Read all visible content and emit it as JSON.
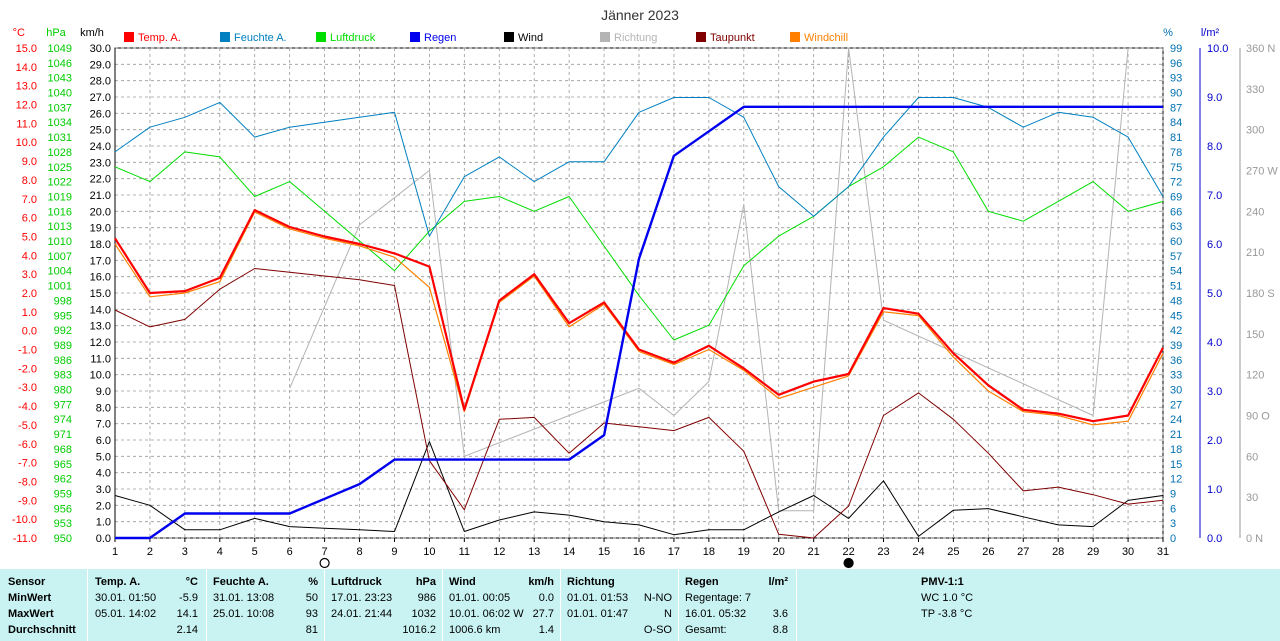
{
  "chart_data": {
    "type": "line",
    "title": "Jänner 2023",
    "x": [
      1,
      2,
      3,
      4,
      5,
      6,
      7,
      8,
      9,
      10,
      11,
      12,
      13,
      14,
      15,
      16,
      17,
      18,
      19,
      20,
      21,
      22,
      23,
      24,
      25,
      26,
      27,
      28,
      29,
      30,
      31
    ],
    "xlim": [
      1,
      31
    ],
    "grid": true,
    "legend_position": "top",
    "axes": {
      "temp": {
        "unit": "°C",
        "min": -11,
        "max": 15,
        "step": 1,
        "color": "#ff0000"
      },
      "hpa": {
        "unit": "hPa",
        "min": 950,
        "max": 1049,
        "step": 3,
        "color": "#00cc00"
      },
      "kmh": {
        "unit": "km/h",
        "min": 0,
        "max": 30,
        "step": 1,
        "color": "#000000"
      },
      "pct": {
        "unit": "%",
        "min": 0,
        "max": 99,
        "step": 3,
        "color": "#0070b0"
      },
      "lm2": {
        "unit": "l/m²",
        "min": 0,
        "max": 10,
        "step": 1,
        "color": "#0000cc"
      },
      "dir": {
        "unit": "",
        "min": 0,
        "max": 360,
        "step": 30,
        "color": "#999999",
        "labels": {
          "0": "0 N",
          "90": "90 O",
          "180": "180 S",
          "270": "270 W",
          "360": "360 N"
        }
      }
    },
    "series": [
      {
        "name": "Temp. A.",
        "axis": "temp",
        "color": "#ff0000",
        "values": [
          4.9,
          2.0,
          2.1,
          2.8,
          6.4,
          5.5,
          5.0,
          4.6,
          4.1,
          3.4,
          -4.2,
          1.6,
          3.0,
          0.4,
          1.5,
          -1.0,
          -1.7,
          -0.8,
          -2.0,
          -3.4,
          -2.7,
          -2.3,
          1.2,
          0.9,
          -1.2,
          -2.9,
          -4.2,
          -4.4,
          -4.8,
          -4.5,
          -0.9
        ]
      },
      {
        "name": "Feuchte A.",
        "axis": "pct",
        "color": "#0080c0",
        "values": [
          78,
          83,
          85,
          88,
          81,
          83,
          84,
          85,
          86,
          61,
          73,
          77,
          72,
          76,
          76,
          86,
          89,
          89,
          85,
          71,
          65,
          71,
          81,
          89,
          89,
          87,
          83,
          86,
          85,
          81,
          69
        ]
      },
      {
        "name": "Luftdruck",
        "axis": "hpa",
        "color": "#00dd00",
        "values": [
          1025,
          1022,
          1028,
          1027,
          1019,
          1022,
          1016,
          1010,
          1004,
          1012,
          1018,
          1019,
          1016,
          1019,
          1009,
          999,
          990,
          993,
          1005,
          1011,
          1015,
          1021,
          1025,
          1031,
          1028,
          1016,
          1014,
          1018,
          1022,
          1016,
          1018
        ]
      },
      {
        "name": "Regen",
        "axis": "lm2",
        "color": "#0000ee",
        "values": [
          0.0,
          0.0,
          0.5,
          0.5,
          0.5,
          0.5,
          0.8,
          1.1,
          1.6,
          1.6,
          1.6,
          1.6,
          1.6,
          1.6,
          2.1,
          5.7,
          7.8,
          8.3,
          8.8,
          8.8,
          8.8,
          8.8,
          8.8,
          8.8,
          8.8,
          8.8,
          8.8,
          8.8,
          8.8,
          8.8,
          8.8
        ]
      },
      {
        "name": "Wind",
        "axis": "kmh",
        "color": "#000000",
        "values": [
          2.6,
          2.0,
          0.5,
          0.5,
          1.2,
          0.7,
          0.6,
          0.5,
          0.4,
          5.9,
          0.4,
          1.1,
          1.6,
          1.4,
          1.0,
          0.8,
          0.2,
          0.5,
          0.5,
          1.6,
          2.6,
          1.2,
          3.5,
          0.1,
          1.7,
          1.8,
          1.3,
          0.8,
          0.7,
          2.3,
          2.6
        ]
      },
      {
        "name": "Richtung",
        "axis": "dir",
        "color": "#b4b4b4",
        "values": [
          null,
          null,
          null,
          null,
          null,
          110,
          170,
          230,
          250,
          270,
          60,
          null,
          null,
          null,
          null,
          110,
          90,
          115,
          245,
          20,
          20,
          360,
          160,
          null,
          null,
          null,
          null,
          null,
          90,
          360,
          null
        ]
      },
      {
        "name": "Taupunkt",
        "axis": "temp",
        "color": "#800000",
        "values": [
          1.1,
          0.2,
          0.6,
          2.2,
          3.3,
          3.1,
          2.9,
          2.7,
          2.4,
          -6.9,
          -9.5,
          -4.7,
          -4.6,
          -6.5,
          -4.9,
          -5.1,
          -5.3,
          -4.6,
          -6.4,
          -10.8,
          -11.0,
          -9.3,
          -4.5,
          -3.3,
          -4.7,
          -6.5,
          -8.5,
          -8.3,
          -8.7,
          -9.2,
          -9.0
        ]
      },
      {
        "name": "Windchill",
        "axis": "temp",
        "color": "#ff8000",
        "values": [
          4.6,
          1.8,
          2.0,
          2.6,
          6.3,
          5.4,
          4.9,
          4.5,
          3.9,
          2.3,
          -4.3,
          1.5,
          2.9,
          0.2,
          1.4,
          -1.1,
          -1.8,
          -1.0,
          -2.1,
          -3.6,
          -3.0,
          -2.4,
          1.0,
          0.8,
          -1.4,
          -3.2,
          -4.3,
          -4.5,
          -5.0,
          -4.8,
          -1.2
        ]
      }
    ],
    "moon_markers": [
      {
        "x": 7,
        "phase": "full"
      },
      {
        "x": 22,
        "phase": "new"
      }
    ]
  },
  "panel": {
    "sensor": {
      "title": "Sensor",
      "rows": [
        "MinWert",
        "MaxWert",
        "Durchschnitt"
      ]
    },
    "temp": {
      "title": "Temp. A.",
      "unit": "°C",
      "rows": [
        {
          "ts": "30.01.  01:50",
          "v": "-5.9"
        },
        {
          "ts": "05.01.  14:02",
          "v": "14.1"
        },
        {
          "ts": "",
          "v": "2.14"
        }
      ]
    },
    "hum": {
      "title": "Feuchte A.",
      "unit": "%",
      "rows": [
        {
          "ts": "31.01.  13:08",
          "v": "50"
        },
        {
          "ts": "25.01.  10:08",
          "v": "93"
        },
        {
          "ts": "",
          "v": "81"
        }
      ]
    },
    "press": {
      "title": "Luftdruck",
      "unit": "hPa",
      "rows": [
        {
          "ts": "17.01.  23:23",
          "v": "986"
        },
        {
          "ts": "24.01.  21:44",
          "v": "1032"
        },
        {
          "ts": "",
          "v": "1016.2"
        }
      ]
    },
    "wind": {
      "title": "Wind",
      "unit": "km/h",
      "rows": [
        {
          "ts": "01.01.  00:05",
          "v": "0.0"
        },
        {
          "ts": "10.01.  06:02  W",
          "v": "27.7"
        },
        {
          "ts": "1006.6 km",
          "v": "1.4"
        }
      ]
    },
    "dir": {
      "title": "Richtung",
      "rows": [
        {
          "ts": "01.01.  01:53",
          "v": "N-NO"
        },
        {
          "ts": "01.01.  01:47",
          "v": "N"
        },
        {
          "ts": "",
          "v": "O-SO"
        }
      ]
    },
    "rain": {
      "title": "Regen",
      "unit": "l/m²",
      "rows": [
        {
          "ts": "Regentage: 7",
          "v": ""
        },
        {
          "ts": "16.01.  05:32",
          "v": "3.6"
        },
        {
          "ts": "Gesamt:",
          "v": "8.8"
        }
      ]
    },
    "pmv": {
      "title": "PMV-1:1",
      "rows": [
        "WC 1.0 °C",
        "TP -3.8 °C"
      ]
    }
  }
}
